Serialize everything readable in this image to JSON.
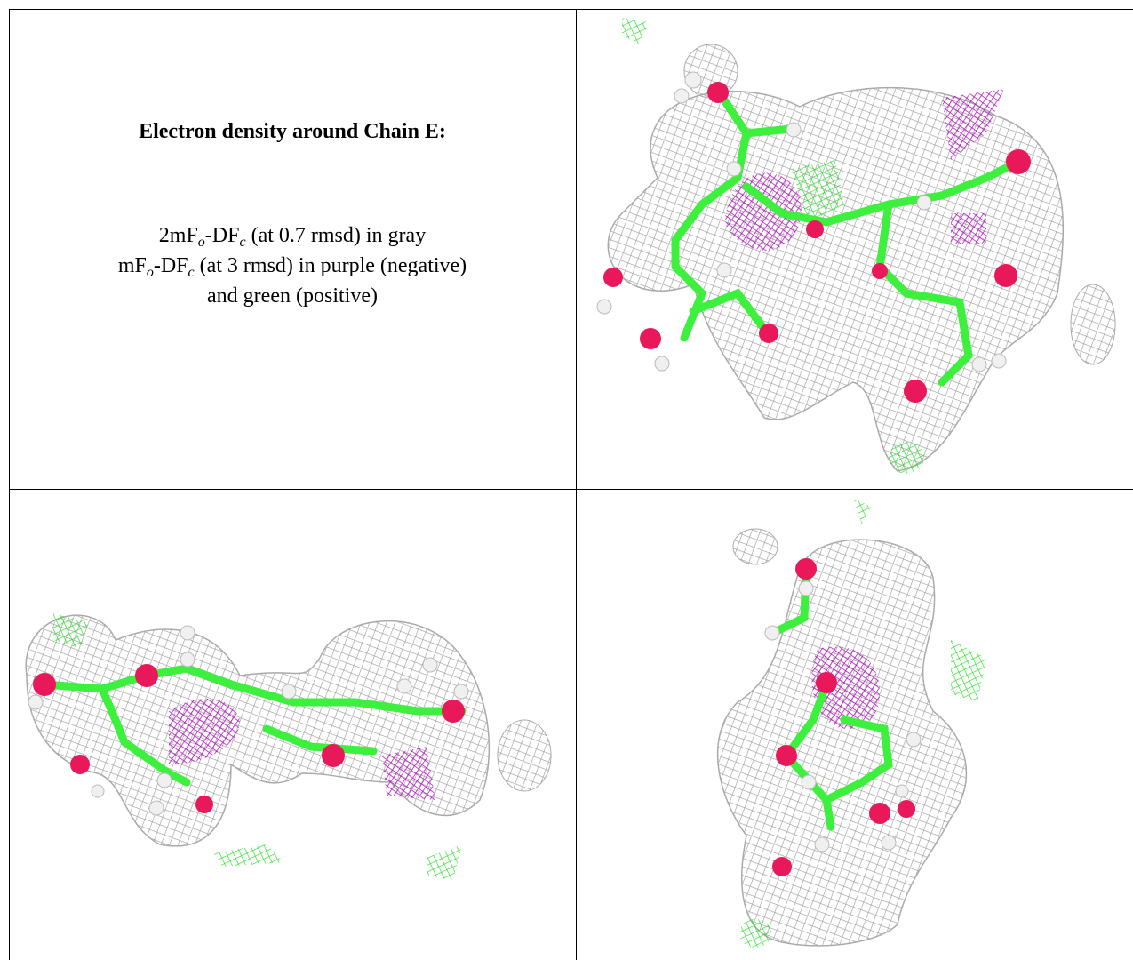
{
  "caption": {
    "title": "Electron density around Chain E:",
    "line1": [
      "2mF",
      "o",
      "-DF",
      "c",
      " (at 0.7 rmsd) in gray"
    ],
    "line2": [
      "mF",
      "o",
      "-DF",
      "c",
      " (at 3 rmsd) in purple (negative)"
    ],
    "line3": "and green (positive)"
  }
}
